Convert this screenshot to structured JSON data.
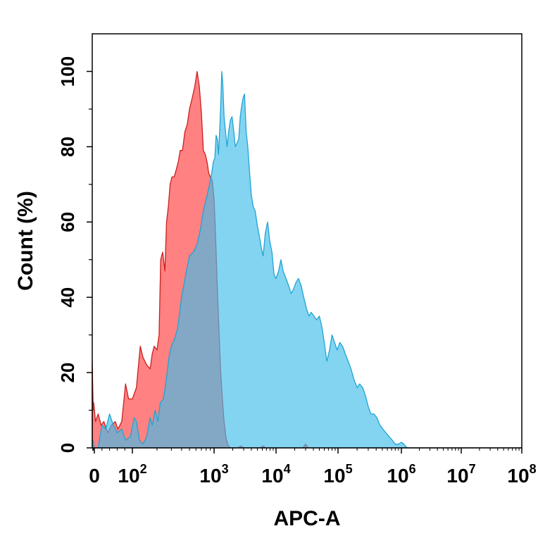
{
  "chart_data": {
    "type": "area",
    "xlabel": "APC-A",
    "ylabel": "Count  (%)",
    "x_scale": "biexponential-log",
    "xlim": [
      -40,
      100000000
    ],
    "ylim": [
      0,
      110
    ],
    "grid": false,
    "legend": "none",
    "x_ticks": [
      {
        "value": 0,
        "base": "0",
        "exp": ""
      },
      {
        "value": 100,
        "base": "10",
        "exp": "2"
      },
      {
        "value": 1000,
        "base": "10",
        "exp": "3"
      },
      {
        "value": 10000,
        "base": "10",
        "exp": "4"
      },
      {
        "value": 100000,
        "base": "10",
        "exp": "5"
      },
      {
        "value": 1000000,
        "base": "10",
        "exp": "6"
      },
      {
        "value": 10000000,
        "base": "10",
        "exp": "7"
      },
      {
        "value": 100000000,
        "base": "10",
        "exp": "8"
      }
    ],
    "y_ticks": [
      "0",
      "20",
      "40",
      "60",
      "80",
      "100"
    ],
    "series": [
      {
        "color": "#ff6b6b",
        "stroke": "#cc1f1f",
        "opacity": 0.85,
        "points": [
          [
            -40,
            23
          ],
          [
            -30,
            15
          ],
          [
            -20,
            10
          ],
          [
            -12,
            12
          ],
          [
            -5,
            11
          ],
          [
            3,
            7
          ],
          [
            10,
            9
          ],
          [
            18,
            6
          ],
          [
            25,
            7
          ],
          [
            35,
            4
          ],
          [
            45,
            6
          ],
          [
            55,
            7
          ],
          [
            62,
            5
          ],
          [
            72,
            7
          ],
          [
            82,
            17
          ],
          [
            90,
            13
          ],
          [
            100,
            13
          ],
          [
            112,
            16
          ],
          [
            125,
            27
          ],
          [
            135,
            24
          ],
          [
            150,
            22
          ],
          [
            165,
            21
          ],
          [
            175,
            25
          ],
          [
            185,
            27
          ],
          [
            200,
            26
          ],
          [
            212,
            30
          ],
          [
            222,
            50
          ],
          [
            235,
            52
          ],
          [
            250,
            47
          ],
          [
            262,
            60
          ],
          [
            275,
            64
          ],
          [
            290,
            70
          ],
          [
            305,
            72
          ],
          [
            325,
            72
          ],
          [
            345,
            74
          ],
          [
            365,
            76
          ],
          [
            385,
            79
          ],
          [
            410,
            79
          ],
          [
            440,
            84
          ],
          [
            470,
            86
          ],
          [
            500,
            90
          ],
          [
            540,
            93
          ],
          [
            580,
            96
          ],
          [
            620,
            100
          ],
          [
            660,
            96
          ],
          [
            700,
            89
          ],
          [
            740,
            79
          ],
          [
            780,
            78
          ],
          [
            820,
            76
          ],
          [
            860,
            73
          ],
          [
            900,
            72
          ],
          [
            950,
            71
          ],
          [
            1000,
            66
          ],
          [
            1060,
            56
          ],
          [
            1120,
            44
          ],
          [
            1200,
            31
          ],
          [
            1280,
            20
          ],
          [
            1360,
            13
          ],
          [
            1450,
            7
          ],
          [
            1550,
            3
          ],
          [
            1650,
            1
          ],
          [
            1800,
            0
          ],
          [
            2400,
            0
          ],
          [
            2700,
            0.5
          ],
          [
            3000,
            0
          ],
          [
            5600,
            0
          ],
          [
            6200,
            0.5
          ],
          [
            6800,
            0
          ],
          [
            27000,
            0
          ],
          [
            30000,
            1
          ],
          [
            33000,
            0
          ],
          [
            100000000,
            0
          ]
        ]
      },
      {
        "color": "#41bde9",
        "stroke": "#1fa4d4",
        "opacity": 0.65,
        "points": [
          [
            -40,
            0
          ],
          [
            -20,
            2
          ],
          [
            -5,
            0
          ],
          [
            10,
            0
          ],
          [
            20,
            6
          ],
          [
            30,
            5
          ],
          [
            40,
            9
          ],
          [
            50,
            6
          ],
          [
            60,
            4
          ],
          [
            72,
            5
          ],
          [
            82,
            2
          ],
          [
            95,
            3
          ],
          [
            105,
            8
          ],
          [
            112,
            7
          ],
          [
            122,
            2
          ],
          [
            135,
            1
          ],
          [
            150,
            3
          ],
          [
            165,
            8
          ],
          [
            175,
            6
          ],
          [
            190,
            10
          ],
          [
            205,
            7
          ],
          [
            220,
            12
          ],
          [
            240,
            13
          ],
          [
            260,
            18
          ],
          [
            280,
            24
          ],
          [
            300,
            27
          ],
          [
            330,
            29
          ],
          [
            360,
            32
          ],
          [
            400,
            40
          ],
          [
            450,
            46
          ],
          [
            500,
            51
          ],
          [
            560,
            52
          ],
          [
            620,
            54
          ],
          [
            680,
            58
          ],
          [
            740,
            63
          ],
          [
            800,
            66
          ],
          [
            860,
            69
          ],
          [
            920,
            72
          ],
          [
            980,
            76
          ],
          [
            1030,
            77
          ],
          [
            1080,
            83
          ],
          [
            1130,
            82
          ],
          [
            1180,
            78
          ],
          [
            1230,
            84
          ],
          [
            1280,
            91
          ],
          [
            1330,
            100
          ],
          [
            1380,
            97
          ],
          [
            1450,
            88
          ],
          [
            1530,
            84
          ],
          [
            1620,
            80
          ],
          [
            1720,
            84
          ],
          [
            1830,
            87
          ],
          [
            1950,
            88
          ],
          [
            2080,
            84
          ],
          [
            2200,
            80
          ],
          [
            2350,
            81
          ],
          [
            2500,
            82
          ],
          [
            2650,
            88
          ],
          [
            2800,
            91
          ],
          [
            2950,
            93
          ],
          [
            3100,
            94
          ],
          [
            3300,
            84
          ],
          [
            3500,
            80
          ],
          [
            3750,
            73
          ],
          [
            4000,
            67
          ],
          [
            4300,
            64
          ],
          [
            4600,
            63
          ],
          [
            5000,
            59
          ],
          [
            5400,
            56
          ],
          [
            5800,
            53
          ],
          [
            6200,
            51
          ],
          [
            6700,
            57
          ],
          [
            7300,
            60
          ],
          [
            7900,
            55
          ],
          [
            8600,
            52
          ],
          [
            9300,
            46
          ],
          [
            10000,
            45
          ],
          [
            11000,
            47
          ],
          [
            12000,
            50
          ],
          [
            13000,
            47
          ],
          [
            14500,
            45
          ],
          [
            16000,
            43
          ],
          [
            17500,
            41
          ],
          [
            19000,
            42
          ],
          [
            21000,
            44
          ],
          [
            23000,
            45
          ],
          [
            25500,
            43
          ],
          [
            28000,
            40
          ],
          [
            31000,
            37
          ],
          [
            34000,
            35
          ],
          [
            37000,
            36
          ],
          [
            41000,
            35
          ],
          [
            45000,
            34
          ],
          [
            50000,
            35
          ],
          [
            55000,
            32
          ],
          [
            60000,
            28
          ],
          [
            66000,
            23
          ],
          [
            73000,
            26
          ],
          [
            80000,
            30
          ],
          [
            88000,
            28
          ],
          [
            97000,
            26
          ],
          [
            107000,
            28
          ],
          [
            118000,
            27
          ],
          [
            130000,
            25
          ],
          [
            145000,
            23
          ],
          [
            160000,
            21
          ],
          [
            180000,
            18
          ],
          [
            200000,
            16
          ],
          [
            220000,
            17
          ],
          [
            245000,
            16
          ],
          [
            270000,
            14
          ],
          [
            300000,
            11
          ],
          [
            330000,
            9
          ],
          [
            370000,
            9
          ],
          [
            410000,
            8
          ],
          [
            460000,
            6
          ],
          [
            510000,
            5
          ],
          [
            570000,
            4
          ],
          [
            640000,
            3
          ],
          [
            720000,
            2
          ],
          [
            800000,
            1
          ],
          [
            900000,
            1
          ],
          [
            1000000,
            1.5
          ],
          [
            1100000,
            1
          ],
          [
            1250000,
            0
          ],
          [
            100000000,
            0
          ]
        ]
      }
    ]
  }
}
